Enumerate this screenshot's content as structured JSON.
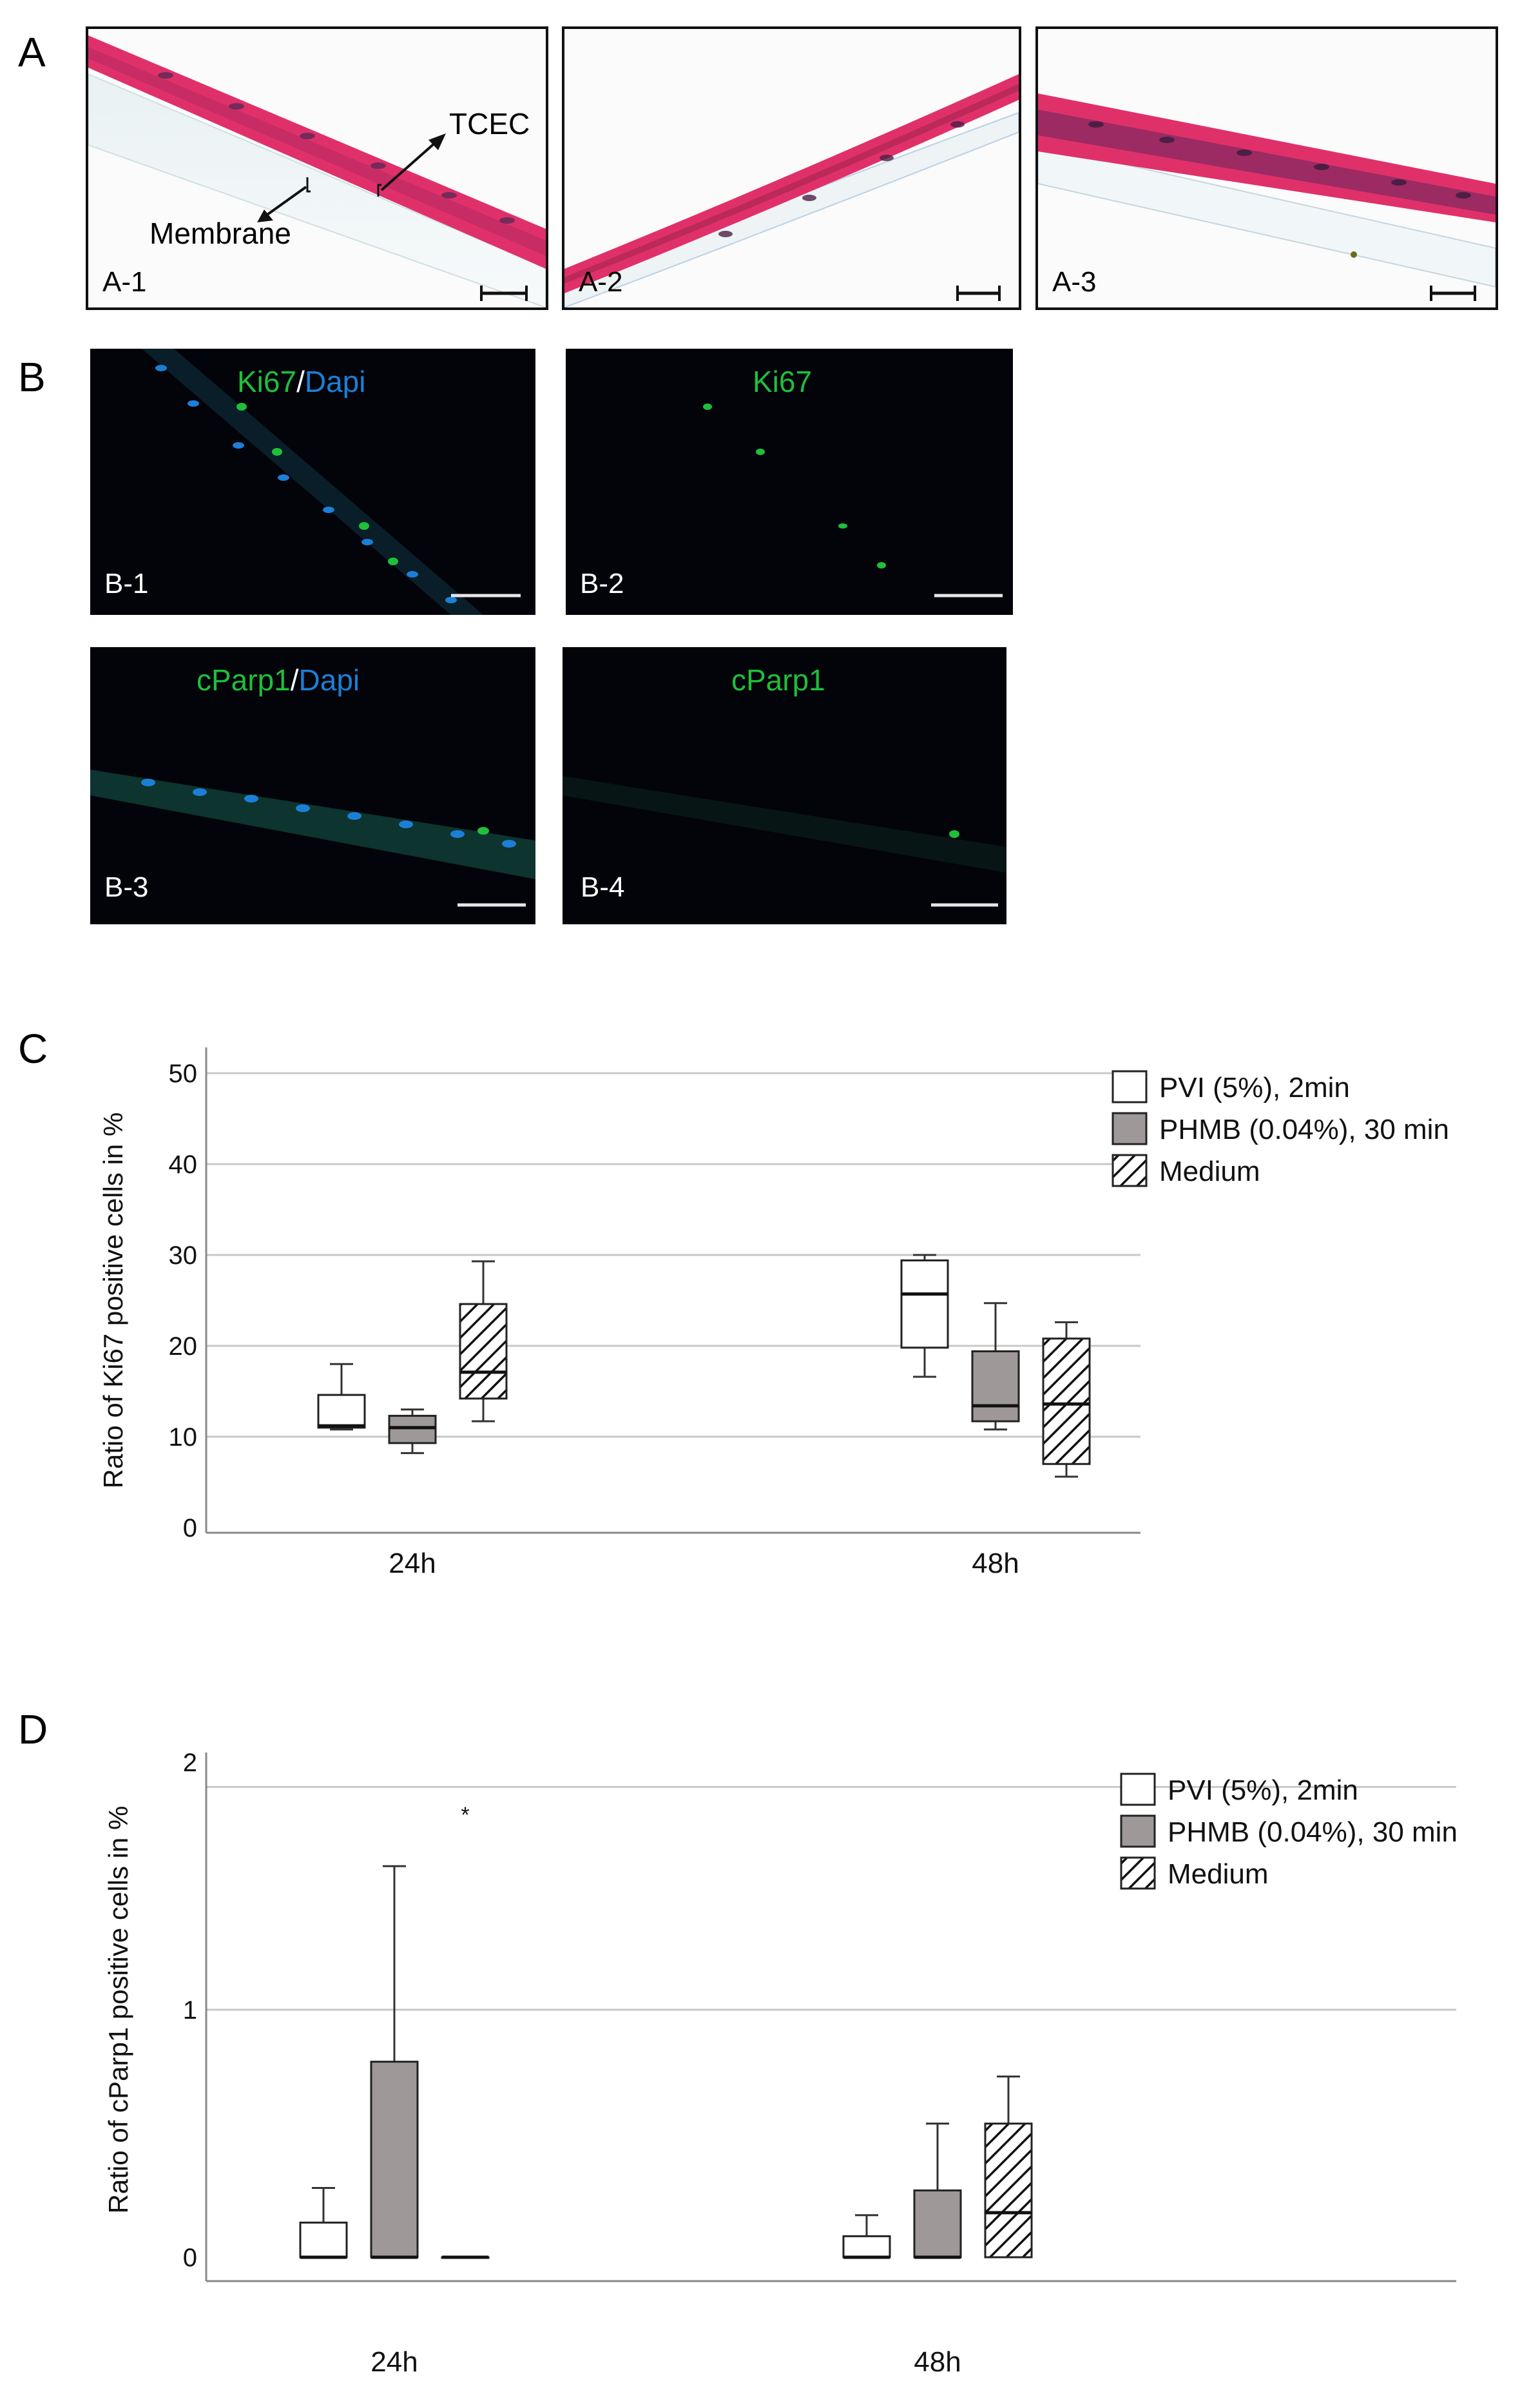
{
  "panels": {
    "A": {
      "letter": "A",
      "images": [
        {
          "label": "A-1",
          "annotation_tcec": "TCEC",
          "annotation_membrane": "Membrane"
        },
        {
          "label": "A-2"
        },
        {
          "label": "A-3"
        }
      ]
    },
    "B": {
      "letter": "B",
      "images": [
        {
          "label": "B-1",
          "stain": "Ki67",
          "counter": "Dapi"
        },
        {
          "label": "B-2",
          "stain": "Ki67"
        },
        {
          "label": "B-3",
          "stain": "cParp1",
          "counter": "Dapi"
        },
        {
          "label": "B-4",
          "stain": "cParp1"
        }
      ],
      "separator": "/"
    },
    "C": {
      "letter": "C"
    },
    "D": {
      "letter": "D"
    }
  },
  "colors": {
    "he_pink": "#e0306a",
    "he_nuclei": "#5a2a55",
    "ki67_green": "#1fbf3a",
    "dapi_blue": "#1c7fd6",
    "phmb_gray": "#9e9898"
  },
  "chart_data": [
    {
      "type": "box",
      "panel": "C",
      "ylabel": "Ratio of Ki67 positive cells in %",
      "xlabel": "",
      "ylim": [
        0,
        50
      ],
      "yticks": [
        "0",
        "10",
        "20",
        "30",
        "40",
        "50"
      ],
      "categories": [
        "24h",
        "48h"
      ],
      "legend": [
        "PVI (5%), 2min",
        "PHMB (0.04%), 30 min",
        "Medium"
      ],
      "series": [
        {
          "name": "PVI (5%), 2min",
          "style": "white",
          "boxes": [
            {
              "min": 10.8,
              "q1": 11.0,
              "median": 11.2,
              "q3": 14.6,
              "max": 18.0
            },
            {
              "min": 16.6,
              "q1": 19.8,
              "median": 25.7,
              "q3": 29.4,
              "max": 30.0
            }
          ]
        },
        {
          "name": "PHMB (0.04%), 30 min",
          "style": "gray",
          "boxes": [
            {
              "min": 8.2,
              "q1": 9.3,
              "median": 11.0,
              "q3": 12.3,
              "max": 13.0
            },
            {
              "min": 10.8,
              "q1": 11.7,
              "median": 13.4,
              "q3": 19.4,
              "max": 24.7
            }
          ]
        },
        {
          "name": "Medium",
          "style": "hatched",
          "boxes": [
            {
              "min": 11.7,
              "q1": 14.2,
              "median": 17.1,
              "q3": 24.6,
              "max": 29.3
            },
            {
              "min": 5.6,
              "q1": 7.0,
              "median": 13.6,
              "q3": 20.8,
              "max": 22.6
            }
          ]
        }
      ]
    },
    {
      "type": "box",
      "panel": "D",
      "ylabel": "Ratio of cParp1 positive cells in %",
      "xlabel": "",
      "ylim": [
        0,
        2
      ],
      "yticks": [
        "0",
        "1",
        "2"
      ],
      "gridlines": [
        1,
        1.9
      ],
      "categories": [
        "24h",
        "48h"
      ],
      "legend": [
        "PVI (5%), 2min",
        "PHMB (0.04%), 30 min",
        "Medium"
      ],
      "outlier": {
        "series": "Medium",
        "category": "24h",
        "value": 1.8,
        "marker": "*"
      },
      "series": [
        {
          "name": "PVI (5%), 2min",
          "style": "white",
          "boxes": [
            {
              "min": 0,
              "q1": 0,
              "median": 0,
              "q3": 0.14,
              "max": 0.28
            },
            {
              "min": 0,
              "q1": 0,
              "median": 0,
              "q3": 0.085,
              "max": 0.17
            }
          ]
        },
        {
          "name": "PHMB (0.04%), 30 min",
          "style": "gray",
          "boxes": [
            {
              "min": 0,
              "q1": 0,
              "median": 0,
              "q3": 0.79,
              "max": 1.58
            },
            {
              "min": 0,
              "q1": 0,
              "median": 0,
              "q3": 0.27,
              "max": 0.54
            }
          ]
        },
        {
          "name": "Medium",
          "style": "hatched",
          "boxes": [
            {
              "min": 0,
              "q1": 0,
              "median": 0,
              "q3": 0,
              "max": 0
            },
            {
              "min": 0,
              "q1": 0,
              "median": 0.18,
              "q3": 0.54,
              "max": 0.73
            }
          ]
        }
      ]
    }
  ]
}
